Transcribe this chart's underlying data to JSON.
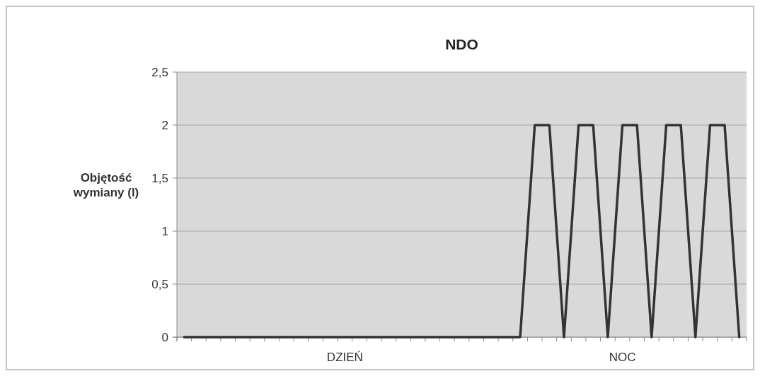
{
  "chart_data": {
    "type": "line",
    "title": "NDO",
    "ylabel": "Objętość wymiany (l)",
    "categories": [
      null,
      null,
      null,
      null,
      null,
      null,
      null,
      null,
      null,
      null,
      null,
      "DZIEŃ",
      null,
      null,
      null,
      null,
      null,
      null,
      null,
      null,
      null,
      null,
      null,
      null,
      null,
      null,
      null,
      null,
      null,
      null,
      "NOC",
      null,
      null,
      null,
      null,
      null,
      null,
      null,
      null
    ],
    "series": [
      {
        "color": "#333333",
        "values": [
          0,
          0,
          0,
          0,
          0,
          0,
          0,
          0,
          0,
          0,
          0,
          0,
          0,
          0,
          0,
          0,
          0,
          0,
          0,
          0,
          0,
          0,
          0,
          0,
          2,
          2,
          0,
          2,
          2,
          0,
          2,
          2,
          0,
          2,
          2,
          0,
          2,
          2,
          0
        ]
      }
    ],
    "ylim": [
      0,
      2.5
    ],
    "yticks": [
      0,
      {
        "value": 0.5,
        "label": "0,5"
      },
      1,
      {
        "value": 1.5,
        "label": "1,5"
      },
      2,
      {
        "value": 2.5,
        "label": "2,5"
      }
    ],
    "grid": "y",
    "marker": "none",
    "line_style": "solid"
  }
}
